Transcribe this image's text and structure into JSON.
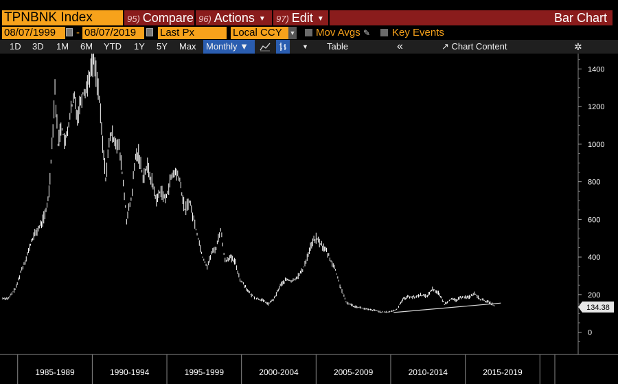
{
  "header": {
    "ticker": "TPNBNK Index",
    "menus": [
      {
        "num": "95)",
        "label": "Compare"
      },
      {
        "num": "96)",
        "label": "Actions"
      },
      {
        "num": "97)",
        "label": "Edit"
      }
    ],
    "chart_kind": "Bar Chart"
  },
  "options": {
    "start_date": "08/07/1999",
    "end_date": "08/07/2019",
    "field": "Last Px",
    "currency": "Local CCY",
    "mov_avgs": "Mov Avgs",
    "key_events": "Key Events"
  },
  "toolbar": {
    "ranges": [
      "1D",
      "3D",
      "1M",
      "6M",
      "YTD",
      "1Y",
      "5Y",
      "Max"
    ],
    "period": "Monthly",
    "table": "Table",
    "collapse": "«",
    "chart_content": "Chart Content"
  },
  "colors": {
    "orange": "#f7a21b",
    "maroon": "#8a1c1c",
    "selected_blue": "#2a5db0",
    "price_line": "#ffffff"
  },
  "chart_data": {
    "type": "line",
    "ylim": [
      -100,
      1500
    ],
    "yticks": [
      0,
      200,
      400,
      600,
      800,
      1000,
      1200,
      1400
    ],
    "last_price_label": "134.38",
    "x_period_labels": [
      "1985-1989",
      "1990-1994",
      "1995-1999",
      "2000-2004",
      "2005-2009",
      "2010-2014",
      "2015-2019"
    ],
    "x_period_bounds": [
      1984,
      1989,
      1994,
      1999,
      2004,
      2009,
      2014,
      2019,
      2020
    ],
    "series": [
      {
        "values_year_price": [
          [
            1983.0,
            180
          ],
          [
            1983.4,
            180
          ],
          [
            1983.9,
            240
          ],
          [
            1984.2,
            320
          ],
          [
            1984.5,
            380
          ],
          [
            1984.8,
            450
          ],
          [
            1985.0,
            500
          ],
          [
            1985.3,
            540
          ],
          [
            1985.6,
            580
          ],
          [
            1985.9,
            640
          ],
          [
            1986.1,
            750
          ],
          [
            1986.3,
            1000
          ],
          [
            1986.5,
            1300
          ],
          [
            1986.7,
            1000
          ],
          [
            1986.9,
            1100
          ],
          [
            1987.2,
            1000
          ],
          [
            1987.5,
            1150
          ],
          [
            1987.8,
            1250
          ],
          [
            1988.0,
            1150
          ],
          [
            1988.3,
            1260
          ],
          [
            1988.6,
            1300
          ],
          [
            1988.9,
            1400
          ],
          [
            1989.1,
            1460
          ],
          [
            1989.4,
            1300
          ],
          [
            1989.7,
            1000
          ],
          [
            1989.9,
            820
          ],
          [
            1990.2,
            1050
          ],
          [
            1990.5,
            1030
          ],
          [
            1990.8,
            980
          ],
          [
            1991.0,
            850
          ],
          [
            1991.3,
            600
          ],
          [
            1991.6,
            700
          ],
          [
            1991.9,
            930
          ],
          [
            1992.1,
            950
          ],
          [
            1992.4,
            830
          ],
          [
            1992.7,
            880
          ],
          [
            1993.0,
            800
          ],
          [
            1993.3,
            700
          ],
          [
            1993.6,
            760
          ],
          [
            1993.9,
            700
          ],
          [
            1994.2,
            800
          ],
          [
            1994.5,
            850
          ],
          [
            1994.8,
            830
          ],
          [
            1995.2,
            650
          ],
          [
            1995.5,
            700
          ],
          [
            1995.8,
            600
          ],
          [
            1996.1,
            500
          ],
          [
            1996.4,
            400
          ],
          [
            1996.7,
            350
          ],
          [
            1997.0,
            420
          ],
          [
            1997.3,
            450
          ],
          [
            1997.6,
            550
          ],
          [
            1997.9,
            380
          ],
          [
            1998.2,
            400
          ],
          [
            1998.6,
            370
          ],
          [
            1998.9,
            280
          ],
          [
            1999.2,
            250
          ],
          [
            1999.6,
            200
          ],
          [
            2000.0,
            180
          ],
          [
            2000.4,
            170
          ],
          [
            2000.8,
            150
          ],
          [
            2001.2,
            180
          ],
          [
            2001.6,
            250
          ],
          [
            2002.0,
            280
          ],
          [
            2002.4,
            270
          ],
          [
            2002.8,
            300
          ],
          [
            2003.1,
            330
          ],
          [
            2003.4,
            400
          ],
          [
            2003.7,
            470
          ],
          [
            2004.0,
            500
          ],
          [
            2004.3,
            470
          ],
          [
            2004.7,
            430
          ],
          [
            2005.0,
            380
          ],
          [
            2005.3,
            330
          ],
          [
            2005.6,
            250
          ],
          [
            2006.0,
            160
          ],
          [
            2006.5,
            140
          ],
          [
            2007.0,
            130
          ],
          [
            2007.5,
            120
          ],
          [
            2008.0,
            115
          ],
          [
            2008.5,
            105
          ],
          [
            2009.0,
            110
          ],
          [
            2009.4,
            120
          ],
          [
            2009.8,
            175
          ],
          [
            2010.2,
            190
          ],
          [
            2010.6,
            185
          ],
          [
            2011.0,
            200
          ],
          [
            2011.4,
            190
          ],
          [
            2011.8,
            230
          ],
          [
            2012.2,
            210
          ],
          [
            2012.6,
            150
          ],
          [
            2013.0,
            175
          ],
          [
            2013.4,
            170
          ],
          [
            2013.8,
            190
          ],
          [
            2014.2,
            185
          ],
          [
            2014.6,
            205
          ],
          [
            2015.0,
            175
          ],
          [
            2015.4,
            165
          ],
          [
            2015.8,
            150
          ],
          [
            2016.0,
            134.38
          ]
        ]
      }
    ],
    "trendline": [
      [
        2009.2,
        105
      ],
      [
        2016.2,
        155
      ]
    ]
  }
}
